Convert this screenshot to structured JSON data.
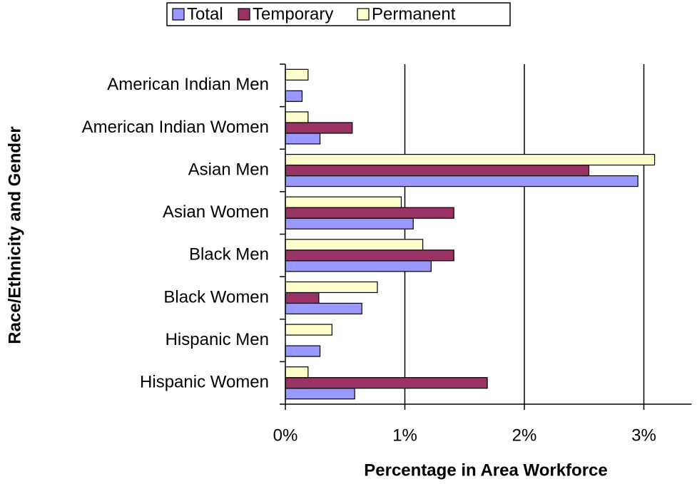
{
  "chart_data": {
    "type": "barh",
    "xlabel": "Percentage in Area Workforce",
    "ylabel": "Race/Ethnicity and Gender",
    "categories": [
      "American Indian Men",
      "American Indian Women",
      "Asian Men",
      "Asian Women",
      "Black Men",
      "Black Women",
      "Hispanic Men",
      "Hispanic Women"
    ],
    "series": [
      {
        "name": "Total",
        "color": "#9999ff",
        "values": [
          0.14,
          0.29,
          2.95,
          1.07,
          1.22,
          0.64,
          0.29,
          0.58
        ]
      },
      {
        "name": "Temporary",
        "color": "#993366",
        "values": [
          0,
          0.56,
          2.54,
          1.41,
          1.41,
          0.28,
          0,
          1.69
        ]
      },
      {
        "name": "Permanent",
        "color": "#ffffcc",
        "values": [
          0.19,
          0.19,
          3.09,
          0.97,
          1.15,
          0.77,
          0.39,
          0.19
        ]
      }
    ],
    "xlim": [
      0,
      3.4
    ],
    "xticks": [
      {
        "value": 0,
        "label": "0%"
      },
      {
        "value": 1,
        "label": "1%"
      },
      {
        "value": 2,
        "label": "2%"
      },
      {
        "value": 3,
        "label": "3%"
      }
    ],
    "grid": true,
    "legend": "top"
  }
}
